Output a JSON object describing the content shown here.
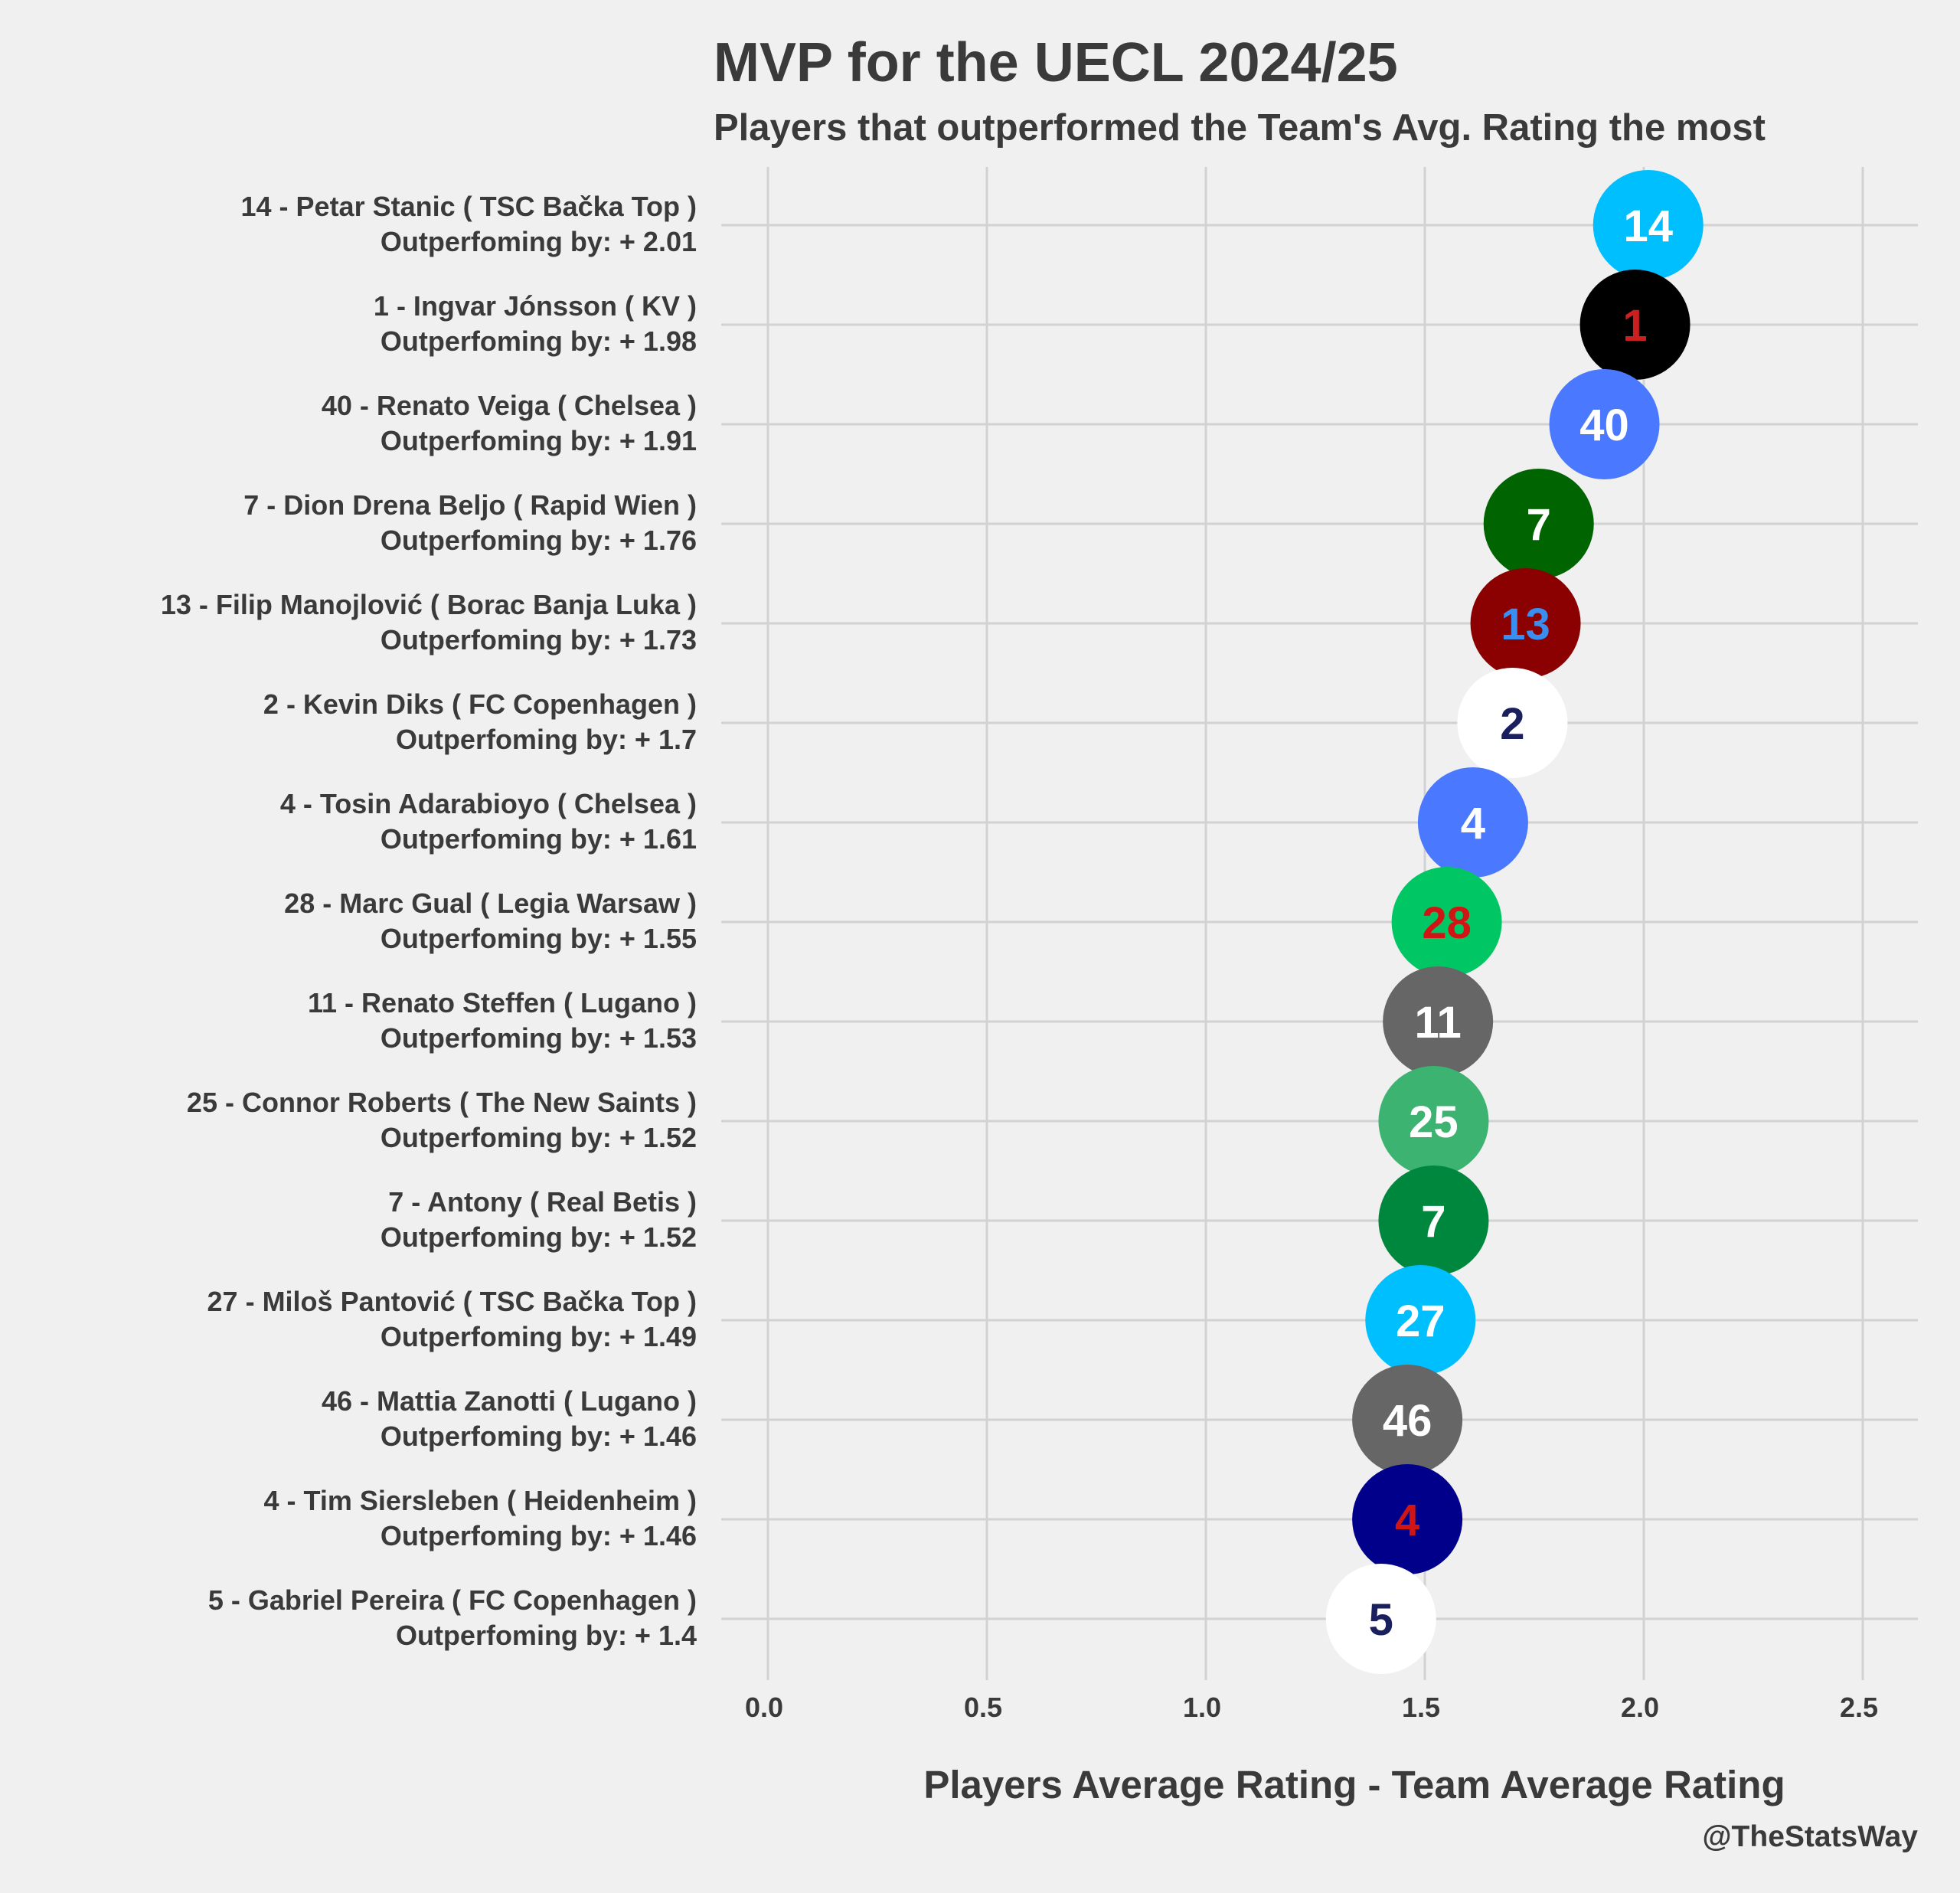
{
  "chart_data": {
    "type": "scatter",
    "title": "MVP for the UECL 2024/25",
    "subtitle": "Players that outperformed the Team's Avg. Rating the most",
    "xlabel": "Players Average Rating - Team Average Rating",
    "ylabel": "",
    "xlim": [
      0,
      2.5
    ],
    "xticks": [
      "0.0",
      "0.5",
      "1.0",
      "1.5",
      "2.0",
      "2.5"
    ],
    "grid": true,
    "caption": "@TheStatsWay",
    "points": [
      {
        "number": "14",
        "line1": "14 - Petar Stanic ( TSC Bačka Top )",
        "line2": "Outperfoming by: + 2.01",
        "value": 2.01,
        "fill": "#00bfff",
        "text_color": "#ffffff"
      },
      {
        "number": "1",
        "line1": "1 - Ingvar Jónsson ( KV )",
        "line2": "Outperfoming by: + 1.98",
        "value": 1.98,
        "fill": "#000000",
        "text_color": "#cc1f1f"
      },
      {
        "number": "40",
        "line1": "40 - Renato Veiga ( Chelsea )",
        "line2": "Outperfoming by: + 1.91",
        "value": 1.91,
        "fill": "#4a78ff",
        "text_color": "#ffffff"
      },
      {
        "number": "7",
        "line1": "7 - Dion Drena Beljo ( Rapid Wien )",
        "line2": "Outperfoming by: + 1.76",
        "value": 1.76,
        "fill": "#006400",
        "text_color": "#ffffff"
      },
      {
        "number": "13",
        "line1": "13 - Filip Manojlović ( Borac Banja Luka )",
        "line2": "Outperfoming by: + 1.73",
        "value": 1.73,
        "fill": "#8b0000",
        "text_color": "#3a8ef0"
      },
      {
        "number": "2",
        "line1": "2 - Kevin Diks ( FC Copenhagen )",
        "line2": "Outperfoming by: + 1.7",
        "value": 1.7,
        "fill": "#ffffff",
        "text_color": "#1a1f5e"
      },
      {
        "number": "4",
        "line1": "4 - Tosin Adarabioyo ( Chelsea )",
        "line2": "Outperfoming by: + 1.61",
        "value": 1.61,
        "fill": "#4a78ff",
        "text_color": "#ffffff"
      },
      {
        "number": "28",
        "line1": "28 - Marc Gual ( Legia Warsaw )",
        "line2": "Outperfoming by: + 1.55",
        "value": 1.55,
        "fill": "#00c763",
        "text_color": "#d11414"
      },
      {
        "number": "11",
        "line1": "11 - Renato Steffen ( Lugano )",
        "line2": "Outperfoming by: + 1.53",
        "value": 1.53,
        "fill": "#666666",
        "text_color": "#ffffff"
      },
      {
        "number": "25",
        "line1": "25 - Connor Roberts ( The New Saints )",
        "line2": "Outperfoming by: + 1.52",
        "value": 1.52,
        "fill": "#3cb371",
        "text_color": "#ffffff"
      },
      {
        "number": "7",
        "line1": "7 - Antony ( Real Betis )",
        "line2": "Outperfoming by: + 1.52",
        "value": 1.52,
        "fill": "#00873e",
        "text_color": "#ffffff"
      },
      {
        "number": "27",
        "line1": "27 - Miloš Pantović ( TSC Bačka Top )",
        "line2": "Outperfoming by: + 1.49",
        "value": 1.49,
        "fill": "#00bfff",
        "text_color": "#ffffff"
      },
      {
        "number": "46",
        "line1": "46 - Mattia Zanotti ( Lugano )",
        "line2": "Outperfoming by: + 1.46",
        "value": 1.46,
        "fill": "#666666",
        "text_color": "#ffffff"
      },
      {
        "number": "4",
        "line1": "4 - Tim Siersleben ( Heidenheim )",
        "line2": "Outperfoming by: + 1.46",
        "value": 1.46,
        "fill": "#00008b",
        "text_color": "#d11414"
      },
      {
        "number": "5",
        "line1": "5 - Gabriel Pereira ( FC Copenhagen )",
        "line2": "Outperfoming by: + 1.4",
        "value": 1.4,
        "fill": "#ffffff",
        "text_color": "#1a1f5e"
      }
    ]
  }
}
